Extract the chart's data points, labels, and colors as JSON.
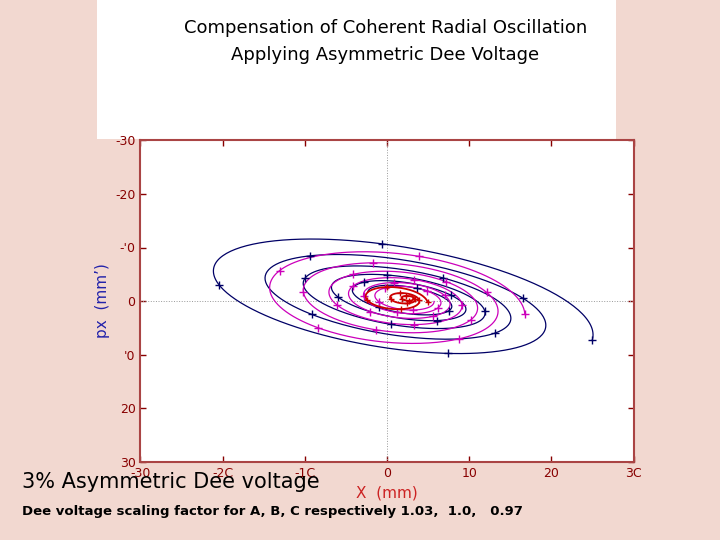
{
  "title_line1": "Compensation of Coherent Radial Oscillation",
  "title_line2": "Applying Asymmetric Dee Voltage",
  "xlabel": "X  (mm)",
  "ylabel": "px  (mm’)",
  "xlim": [
    -30,
    30
  ],
  "ylim": [
    -30,
    30
  ],
  "xticks": [
    -30,
    -20,
    -10,
    0,
    10,
    20,
    30
  ],
  "yticks": [
    -30,
    -20,
    -10,
    0,
    10,
    20,
    30
  ],
  "xticklabels": [
    "-30",
    "-2C",
    "-1C",
    "0",
    "10",
    "20",
    "3C"
  ],
  "yticklabels": [
    "30",
    "20",
    "'0",
    "0",
    "-'0",
    "-20",
    "-30"
  ],
  "subtitle": "3% Asymmetric Dee voltage",
  "caption": "Dee voltage scaling factor for A, B, C respectively 1.03,  1.0,   0.97",
  "plot_bg": "#ffffff",
  "border_color": "#aa4444",
  "axis_color": "#880000",
  "title_color": "#000000",
  "subtitle_color": "#000000",
  "caption_color": "#000000",
  "outer_bg": "#f2d8d0",
  "navy_color": "#000066",
  "magenta_color": "#cc00bb",
  "red_color": "#cc0000",
  "xlabel_color": "#cc2222",
  "ylabel_color": "#2222aa"
}
